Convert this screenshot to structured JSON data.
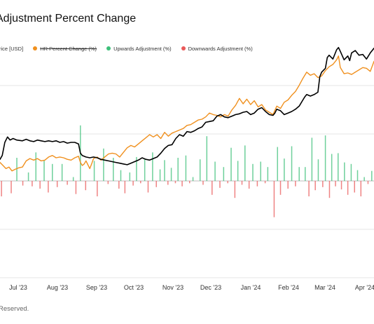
{
  "colors": {
    "price": "#000000",
    "hr_change": "#f0901e",
    "up": "#3ec07a",
    "down": "#ea5a5a",
    "grid": "#e4e4e4",
    "baseline": "#bdbdbd"
  },
  "legend": {
    "price": "Price [USD]",
    "hr_change": "HR Percent Change (%)",
    "up": "Upwards Adjustment (%)",
    "down": "Downwards Adjustment (%)"
  },
  "footer": {
    "text": "Reserved."
  },
  "chart_data": {
    "type": "line",
    "title": "Adjustment Percent Change",
    "x_tick_labels": [
      "Jul '23",
      "Aug '23",
      "Sep '23",
      "Oct '23",
      "Nov '23",
      "Dec '23",
      "Jan '24",
      "Feb '24",
      "Mar '24",
      "Apr '24"
    ],
    "x_range": [
      "2023-06-12",
      "2024-04-12"
    ],
    "grid": "horizontal",
    "legend_position": "top-left",
    "series": [
      {
        "key": "price",
        "name": "Price [USD]",
        "type": "line",
        "points": [
          [
            0,
            0.28
          ],
          [
            0.006,
            0.33
          ],
          [
            0.013,
            0.5
          ],
          [
            0.02,
            0.57
          ],
          [
            0.027,
            0.53
          ],
          [
            0.035,
            0.55
          ],
          [
            0.045,
            0.53
          ],
          [
            0.06,
            0.52
          ],
          [
            0.07,
            0.54
          ],
          [
            0.08,
            0.52
          ],
          [
            0.09,
            0.51
          ],
          [
            0.1,
            0.53
          ],
          [
            0.11,
            0.52
          ],
          [
            0.12,
            0.51
          ],
          [
            0.13,
            0.52
          ],
          [
            0.14,
            0.51
          ],
          [
            0.15,
            0.52
          ],
          [
            0.16,
            0.5
          ],
          [
            0.17,
            0.51
          ],
          [
            0.18,
            0.49
          ],
          [
            0.19,
            0.5
          ],
          [
            0.2,
            0.5
          ],
          [
            0.21,
            0.48
          ],
          [
            0.215,
            0.36
          ],
          [
            0.22,
            0.33
          ],
          [
            0.23,
            0.31
          ],
          [
            0.24,
            0.3
          ],
          [
            0.25,
            0.31
          ],
          [
            0.26,
            0.3
          ],
          [
            0.27,
            0.28
          ],
          [
            0.28,
            0.27
          ],
          [
            0.29,
            0.26
          ],
          [
            0.3,
            0.25
          ],
          [
            0.31,
            0.24
          ],
          [
            0.32,
            0.23
          ],
          [
            0.33,
            0.22
          ],
          [
            0.34,
            0.21
          ],
          [
            0.35,
            0.23
          ],
          [
            0.36,
            0.25
          ],
          [
            0.37,
            0.27
          ],
          [
            0.38,
            0.3
          ],
          [
            0.39,
            0.28
          ],
          [
            0.4,
            0.27
          ],
          [
            0.41,
            0.29
          ],
          [
            0.42,
            0.31
          ],
          [
            0.43,
            0.36
          ],
          [
            0.44,
            0.42
          ],
          [
            0.45,
            0.46
          ],
          [
            0.46,
            0.47
          ],
          [
            0.47,
            0.55
          ],
          [
            0.48,
            0.6
          ],
          [
            0.49,
            0.58
          ],
          [
            0.5,
            0.64
          ],
          [
            0.51,
            0.63
          ],
          [
            0.52,
            0.65
          ],
          [
            0.53,
            0.68
          ],
          [
            0.54,
            0.7
          ],
          [
            0.55,
            0.76
          ],
          [
            0.56,
            0.77
          ],
          [
            0.57,
            0.78
          ],
          [
            0.58,
            0.84
          ],
          [
            0.59,
            0.86
          ],
          [
            0.6,
            0.83
          ],
          [
            0.61,
            0.82
          ],
          [
            0.62,
            0.84
          ],
          [
            0.63,
            0.86
          ],
          [
            0.64,
            0.87
          ],
          [
            0.65,
            0.89
          ],
          [
            0.66,
            0.9
          ],
          [
            0.67,
            0.86
          ],
          [
            0.68,
            0.88
          ],
          [
            0.69,
            0.93
          ],
          [
            0.7,
            0.95
          ],
          [
            0.71,
            0.9
          ],
          [
            0.72,
            0.86
          ],
          [
            0.73,
            0.85
          ],
          [
            0.735,
            0.88
          ],
          [
            0.74,
            0.93
          ],
          [
            0.75,
            0.91
          ],
          [
            0.76,
            0.86
          ],
          [
            0.77,
            0.88
          ],
          [
            0.78,
            0.9
          ],
          [
            0.79,
            0.93
          ],
          [
            0.8,
            0.97
          ],
          [
            0.81,
            1.05
          ],
          [
            0.815,
            1.09
          ],
          [
            0.82,
            1.12
          ],
          [
            0.83,
            1.1
          ],
          [
            0.84,
            1.12
          ],
          [
            0.85,
            1.15
          ],
          [
            0.855,
            1.35
          ],
          [
            0.86,
            1.41
          ],
          [
            0.87,
            1.46
          ],
          [
            0.875,
            1.6
          ],
          [
            0.88,
            1.63
          ],
          [
            0.89,
            1.58
          ],
          [
            0.9,
            1.7
          ],
          [
            0.905,
            1.73
          ],
          [
            0.91,
            1.68
          ],
          [
            0.92,
            1.57
          ],
          [
            0.93,
            1.62
          ],
          [
            0.935,
            1.56
          ],
          [
            0.94,
            1.66
          ],
          [
            0.95,
            1.69
          ],
          [
            0.96,
            1.63
          ],
          [
            0.97,
            1.64
          ],
          [
            0.98,
            1.58
          ],
          [
            0.985,
            1.62
          ],
          [
            0.99,
            1.66
          ],
          [
            1.0,
            1.72
          ]
        ]
      },
      {
        "key": "hr_change",
        "name": "HR Percent Change (%)",
        "type": "line",
        "points": [
          [
            0,
            0.24
          ],
          [
            0.008,
            0.2
          ],
          [
            0.016,
            0.16
          ],
          [
            0.024,
            0.18
          ],
          [
            0.032,
            0.13
          ],
          [
            0.04,
            0.15
          ],
          [
            0.05,
            0.17
          ],
          [
            0.06,
            0.18
          ],
          [
            0.07,
            0.26
          ],
          [
            0.08,
            0.29
          ],
          [
            0.09,
            0.27
          ],
          [
            0.1,
            0.29
          ],
          [
            0.11,
            0.26
          ],
          [
            0.12,
            0.27
          ],
          [
            0.13,
            0.31
          ],
          [
            0.14,
            0.33
          ],
          [
            0.15,
            0.3
          ],
          [
            0.16,
            0.31
          ],
          [
            0.17,
            0.3
          ],
          [
            0.18,
            0.28
          ],
          [
            0.19,
            0.27
          ],
          [
            0.2,
            0.3
          ],
          [
            0.21,
            0.32
          ],
          [
            0.215,
            0.24
          ],
          [
            0.22,
            0.2
          ],
          [
            0.225,
            0.22
          ],
          [
            0.23,
            0.26
          ],
          [
            0.24,
            0.16
          ],
          [
            0.245,
            0.22
          ],
          [
            0.25,
            0.29
          ],
          [
            0.26,
            0.31
          ],
          [
            0.27,
            0.27
          ],
          [
            0.28,
            0.31
          ],
          [
            0.29,
            0.35
          ],
          [
            0.3,
            0.36
          ],
          [
            0.31,
            0.35
          ],
          [
            0.32,
            0.31
          ],
          [
            0.33,
            0.37
          ],
          [
            0.34,
            0.43
          ],
          [
            0.35,
            0.46
          ],
          [
            0.36,
            0.44
          ],
          [
            0.37,
            0.48
          ],
          [
            0.38,
            0.52
          ],
          [
            0.39,
            0.56
          ],
          [
            0.4,
            0.6
          ],
          [
            0.41,
            0.57
          ],
          [
            0.42,
            0.6
          ],
          [
            0.43,
            0.55
          ],
          [
            0.44,
            0.63
          ],
          [
            0.45,
            0.58
          ],
          [
            0.46,
            0.62
          ],
          [
            0.47,
            0.64
          ],
          [
            0.48,
            0.66
          ],
          [
            0.49,
            0.68
          ],
          [
            0.5,
            0.72
          ],
          [
            0.51,
            0.73
          ],
          [
            0.52,
            0.76
          ],
          [
            0.53,
            0.79
          ],
          [
            0.54,
            0.8
          ],
          [
            0.55,
            0.83
          ],
          [
            0.56,
            0.88
          ],
          [
            0.57,
            0.86
          ],
          [
            0.58,
            0.85
          ],
          [
            0.59,
            0.83
          ],
          [
            0.6,
            0.86
          ],
          [
            0.61,
            0.84
          ],
          [
            0.62,
            0.92
          ],
          [
            0.63,
            0.98
          ],
          [
            0.64,
            1.07
          ],
          [
            0.65,
            1.0
          ],
          [
            0.66,
            1.06
          ],
          [
            0.67,
            0.99
          ],
          [
            0.68,
            1.04
          ],
          [
            0.69,
            0.96
          ],
          [
            0.7,
            0.99
          ],
          [
            0.71,
            0.92
          ],
          [
            0.72,
            0.89
          ],
          [
            0.73,
            0.86
          ],
          [
            0.74,
            0.97
          ],
          [
            0.75,
            0.94
          ],
          [
            0.76,
            1.02
          ],
          [
            0.77,
            1.05
          ],
          [
            0.78,
            1.11
          ],
          [
            0.79,
            1.16
          ],
          [
            0.8,
            1.24
          ],
          [
            0.81,
            1.33
          ],
          [
            0.82,
            1.41
          ],
          [
            0.83,
            1.37
          ],
          [
            0.84,
            1.39
          ],
          [
            0.85,
            1.34
          ],
          [
            0.86,
            1.36
          ],
          [
            0.87,
            1.43
          ],
          [
            0.88,
            1.48
          ],
          [
            0.89,
            1.51
          ],
          [
            0.9,
            1.57
          ],
          [
            0.905,
            1.62
          ],
          [
            0.91,
            1.47
          ],
          [
            0.92,
            1.39
          ],
          [
            0.93,
            1.4
          ],
          [
            0.94,
            1.38
          ],
          [
            0.95,
            1.41
          ],
          [
            0.96,
            1.44
          ],
          [
            0.97,
            1.47
          ],
          [
            0.98,
            1.46
          ],
          [
            0.99,
            1.42
          ],
          [
            1.0,
            1.55
          ]
        ]
      },
      {
        "key": "up",
        "name": "Upwards Adjustment (%)",
        "type": "bar",
        "points": [
          [
            0.045,
            0.3
          ],
          [
            0.076,
            0.11
          ],
          [
            0.096,
            0.37
          ],
          [
            0.118,
            0.27
          ],
          [
            0.14,
            0.22
          ],
          [
            0.166,
            0.22
          ],
          [
            0.196,
            0.05
          ],
          [
            0.215,
            0.72
          ],
          [
            0.252,
            0.26
          ],
          [
            0.277,
            0.42
          ],
          [
            0.303,
            0.3
          ],
          [
            0.323,
            0.14
          ],
          [
            0.347,
            0.11
          ],
          [
            0.365,
            0.31
          ],
          [
            0.387,
            0.28
          ],
          [
            0.408,
            0.37
          ],
          [
            0.428,
            0.15
          ],
          [
            0.44,
            0.27
          ],
          [
            0.458,
            0.17
          ],
          [
            0.476,
            0.3
          ],
          [
            0.497,
            0.33
          ],
          [
            0.516,
            0.05
          ],
          [
            0.535,
            0.28
          ],
          [
            0.553,
            0.58
          ],
          [
            0.575,
            0.25
          ],
          [
            0.598,
            0.18
          ],
          [
            0.618,
            0.43
          ],
          [
            0.636,
            0.26
          ],
          [
            0.655,
            0.46
          ],
          [
            0.676,
            0.22
          ],
          [
            0.697,
            0.25
          ],
          [
            0.716,
            0.18
          ],
          [
            0.742,
            0.44
          ],
          [
            0.76,
            0.29
          ],
          [
            0.78,
            0.45
          ],
          [
            0.8,
            0.18
          ],
          [
            0.816,
            0.18
          ],
          [
            0.834,
            0.56
          ],
          [
            0.851,
            0.28
          ],
          [
            0.87,
            0.59
          ],
          [
            0.887,
            0.35
          ],
          [
            0.904,
            0.36
          ],
          [
            0.921,
            0.24
          ],
          [
            0.939,
            0.22
          ],
          [
            0.956,
            0.14
          ],
          [
            0.974,
            0.05
          ],
          [
            0.994,
            0.13
          ]
        ]
      },
      {
        "key": "down",
        "name": "Downwards Adjustment (%)",
        "type": "bar",
        "points": [
          [
            0.004,
            0.2
          ],
          [
            0.03,
            0.16
          ],
          [
            0.061,
            0.06
          ],
          [
            0.086,
            0.07
          ],
          [
            0.107,
            0.1
          ],
          [
            0.129,
            0.15
          ],
          [
            0.153,
            0.08
          ],
          [
            0.18,
            0.05
          ],
          [
            0.203,
            0.17
          ],
          [
            0.229,
            0.12
          ],
          [
            0.26,
            0.2
          ],
          [
            0.289,
            0.04
          ],
          [
            0.318,
            0.1
          ],
          [
            0.334,
            0.16
          ],
          [
            0.356,
            0.06
          ],
          [
            0.376,
            0.03
          ],
          [
            0.396,
            0.15
          ],
          [
            0.418,
            0.08
          ],
          [
            0.449,
            0.05
          ],
          [
            0.469,
            0.03
          ],
          [
            0.487,
            0.07
          ],
          [
            0.507,
            0.03
          ],
          [
            0.543,
            0.05
          ],
          [
            0.567,
            0.18
          ],
          [
            0.588,
            0.09
          ],
          [
            0.609,
            0.03
          ],
          [
            0.628,
            0.22
          ],
          [
            0.647,
            0.05
          ],
          [
            0.666,
            0.1
          ],
          [
            0.688,
            0.07
          ],
          [
            0.709,
            0.03
          ],
          [
            0.733,
            0.47
          ],
          [
            0.75,
            0.18
          ],
          [
            0.77,
            0.1
          ],
          [
            0.79,
            0.07
          ],
          [
            0.826,
            0.2
          ],
          [
            0.843,
            0.12
          ],
          [
            0.863,
            0.08
          ],
          [
            0.881,
            0.22
          ],
          [
            0.897,
            0.07
          ],
          [
            0.913,
            0.11
          ],
          [
            0.93,
            0.18
          ],
          [
            0.948,
            0.15
          ],
          [
            0.965,
            0.2
          ],
          [
            0.984,
            0.04
          ]
        ]
      }
    ]
  }
}
